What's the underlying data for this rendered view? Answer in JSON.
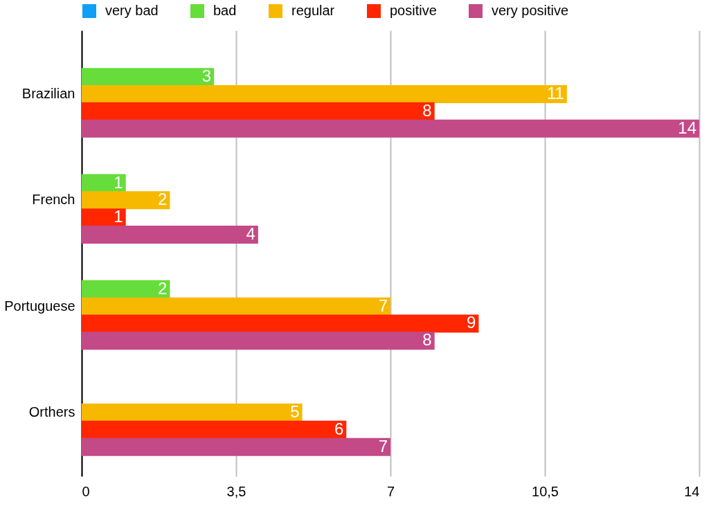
{
  "chart_data": {
    "type": "bar",
    "orientation": "horizontal",
    "categories": [
      "Brazilian",
      "French",
      "Portuguese",
      "Orthers"
    ],
    "series": [
      {
        "name": "very bad",
        "color": "#0fa0f5",
        "values": [
          null,
          null,
          null,
          null
        ]
      },
      {
        "name": "bad",
        "color": "#66dd3a",
        "values": [
          3,
          1,
          2,
          null
        ]
      },
      {
        "name": "regular",
        "color": "#f7b900",
        "values": [
          11,
          2,
          7,
          5
        ]
      },
      {
        "name": "positive",
        "color": "#ff2600",
        "values": [
          8,
          1,
          9,
          6
        ]
      },
      {
        "name": "very positive",
        "color": "#c34a87",
        "values": [
          14,
          4,
          8,
          7
        ]
      }
    ],
    "xlim": [
      0,
      14
    ],
    "xticks": [
      0,
      {
        "value": 3.5,
        "label": "3,5"
      },
      7,
      {
        "value": 10.5,
        "label": "10,5"
      },
      14
    ],
    "grid": "x",
    "legend": "top",
    "data_labels": true
  }
}
